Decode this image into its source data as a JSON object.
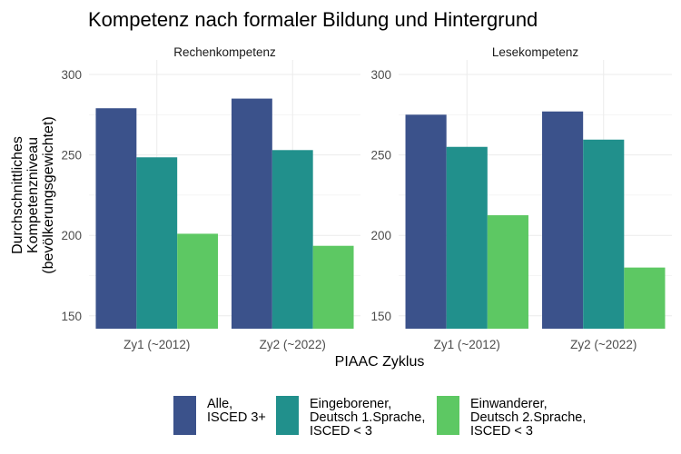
{
  "chart_data": {
    "type": "bar",
    "title": "Kompetenz nach formaler Bildung und Hintergrund",
    "xlabel": "PIAAC Zyklus",
    "ylabel_lines": [
      "Durchschnittliches",
      "Kompetenzniveau",
      "(bevölkerungsgewichtet)"
    ],
    "ylim": [
      143,
      306
    ],
    "yticks": [
      150,
      200,
      250,
      300
    ],
    "grid": true,
    "legend_position": "bottom",
    "categories": [
      "Zy1 (~2012)",
      "Zy2 (~2022)"
    ],
    "series_meta": [
      {
        "name": "Alle, ISCED 3+",
        "label_lines": [
          "Alle,",
          "ISCED 3+"
        ],
        "color": "#3B528B"
      },
      {
        "name": "Eingeborener, Deutsch 1.Sprache, ISCED < 3",
        "label_lines": [
          "Eingeborener,",
          "Deutsch 1.Sprache,",
          "ISCED < 3"
        ],
        "color": "#21908C"
      },
      {
        "name": "Einwanderer, Deutsch 2.Sprache, ISCED < 3",
        "label_lines": [
          "Einwanderer,",
          "Deutsch 2.Sprache,",
          "ISCED < 3"
        ],
        "color": "#5DC863"
      }
    ],
    "panels": [
      {
        "title": "Rechenkompetenz",
        "series": [
          {
            "name": "Alle, ISCED 3+",
            "values": [
              279,
              285
            ]
          },
          {
            "name": "Eingeborener, Deutsch 1.Sprache, ISCED < 3",
            "values": [
              248.5,
              253
            ]
          },
          {
            "name": "Einwanderer, Deutsch 2.Sprache, ISCED < 3",
            "values": [
              201,
              193.5
            ]
          }
        ]
      },
      {
        "title": "Lesekompetenz",
        "series": [
          {
            "name": "Alle, ISCED 3+",
            "values": [
              275,
              277
            ]
          },
          {
            "name": "Eingeborener, Deutsch 1.Sprache, ISCED < 3",
            "values": [
              255,
              259.5
            ]
          },
          {
            "name": "Einwanderer, Deutsch 2.Sprache, ISCED < 3",
            "values": [
              212.5,
              180
            ]
          }
        ]
      }
    ]
  }
}
